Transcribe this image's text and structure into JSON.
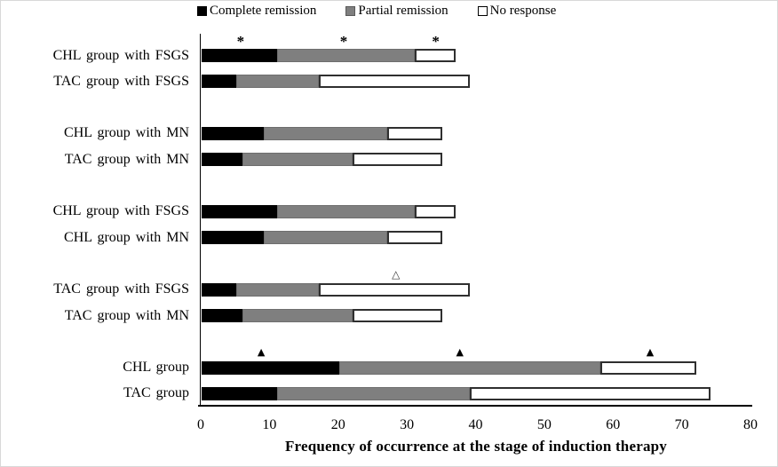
{
  "figure": {
    "background": "#ffffff",
    "frame_color": "#d8d8d8"
  },
  "chart_data": {
    "type": "bar",
    "orientation": "horizontal",
    "stacked": true,
    "grid": false,
    "legend_position": "top",
    "xlabel": "Frequency of occurrence at the stage of induction therapy",
    "xlim": [
      0,
      80
    ],
    "xticks": [
      0,
      10,
      20,
      30,
      40,
      50,
      60,
      70,
      80
    ],
    "series_names": [
      "Complete remission",
      "Partial remission",
      "No response"
    ],
    "series_colors": [
      "#000000",
      "#7f7f7f",
      "#ffffff"
    ],
    "legend": [
      {
        "label": "Complete remission",
        "fill": "#000000",
        "border": "#000000"
      },
      {
        "label": "Partial remission",
        "fill": "#7f7f7f",
        "border": "#595959"
      },
      {
        "label": "No response",
        "fill": "#ffffff",
        "border": "#000000"
      }
    ],
    "rows": [
      {
        "label": "CHL group with FSGS",
        "slot": 0,
        "values": [
          11,
          20,
          6
        ]
      },
      {
        "label": "TAC group with FSGS",
        "slot": 1,
        "values": [
          5,
          12,
          22
        ]
      },
      {
        "label": "CHL group with MN",
        "slot": 3,
        "values": [
          9,
          18,
          8
        ]
      },
      {
        "label": "TAC group with MN",
        "slot": 4,
        "values": [
          6,
          16,
          13
        ]
      },
      {
        "label": "CHL group with FSGS",
        "slot": 6,
        "values": [
          11,
          20,
          6
        ]
      },
      {
        "label": "CHL group with MN",
        "slot": 7,
        "values": [
          9,
          18,
          8
        ]
      },
      {
        "label": "TAC group with FSGS",
        "slot": 9,
        "values": [
          5,
          12,
          22
        ]
      },
      {
        "label": "TAC group with MN",
        "slot": 10,
        "values": [
          6,
          16,
          13
        ]
      },
      {
        "label": "CHL group",
        "slot": 12,
        "values": [
          20,
          38,
          14
        ]
      },
      {
        "label": "TAC group",
        "slot": 13,
        "values": [
          11,
          28,
          35
        ]
      }
    ],
    "annotations": [
      {
        "symbol": "*",
        "kind": "asterisk",
        "slot": 0,
        "x_values": [
          5.8,
          20.8,
          34.2
        ]
      },
      {
        "symbol": "△",
        "kind": "open-triangle",
        "slot": 9,
        "x_values": [
          28.4
        ]
      },
      {
        "symbol": "▲",
        "kind": "filled-triangle",
        "slot": 12,
        "x_values": [
          8.8,
          37.7,
          65.4
        ]
      }
    ]
  }
}
